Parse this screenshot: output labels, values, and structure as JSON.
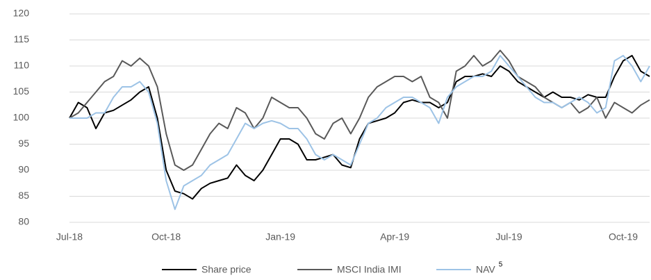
{
  "chart_data": {
    "type": "line",
    "categories": [
      "Jul-18",
      null,
      null,
      null,
      null,
      null,
      null,
      null,
      null,
      null,
      null,
      "Oct-18",
      null,
      null,
      null,
      null,
      null,
      null,
      null,
      null,
      null,
      null,
      null,
      null,
      "Jan-19",
      null,
      null,
      null,
      null,
      null,
      null,
      null,
      null,
      null,
      null,
      null,
      null,
      "Apr-19",
      null,
      null,
      null,
      null,
      null,
      null,
      null,
      null,
      null,
      null,
      null,
      null,
      "Jul-19",
      null,
      null,
      null,
      null,
      null,
      null,
      null,
      null,
      null,
      null,
      null,
      null,
      "Oct-19",
      null,
      null,
      null
    ],
    "series": [
      {
        "name": "Share price",
        "color": "#000000",
        "values": [
          100,
          103,
          102,
          98,
          101,
          101.5,
          102.5,
          103.5,
          105,
          106,
          100,
          90,
          86,
          85.5,
          84.5,
          86.5,
          87.5,
          88,
          88.5,
          91,
          89,
          88,
          90,
          93,
          96,
          96,
          95,
          92,
          92,
          92.5,
          93,
          91,
          90.5,
          96,
          99,
          99.5,
          100,
          101,
          103,
          103.5,
          103,
          103,
          102,
          103,
          107,
          108,
          108,
          108.5,
          108,
          110,
          109,
          107,
          106,
          105,
          104,
          105,
          104,
          104,
          103.5,
          104.5,
          104,
          104,
          108,
          111,
          112,
          109,
          108
        ]
      },
      {
        "name": "MSCI India IMI",
        "color": "#595959",
        "values": [
          100,
          101,
          103,
          105,
          107,
          108,
          111,
          110,
          111.5,
          110,
          106,
          97,
          91,
          90,
          91,
          94,
          97,
          99,
          98,
          102,
          101,
          98,
          100,
          104,
          103,
          102,
          102,
          100,
          97,
          96,
          99,
          100,
          97,
          100,
          104,
          106,
          107,
          108,
          108,
          107,
          108,
          104,
          103,
          100,
          109,
          110,
          112,
          110,
          111,
          113,
          111,
          108,
          107,
          106,
          104,
          103,
          102,
          103,
          101,
          102,
          104,
          100,
          103,
          102,
          101,
          102.5,
          103.5
        ]
      },
      {
        "name": "NAV",
        "footnote": "5",
        "color": "#9dc3e6",
        "values": [
          100,
          100,
          100,
          101,
          101,
          104,
          106,
          106,
          107,
          105,
          99,
          88,
          82.5,
          87,
          88,
          89,
          91,
          92,
          93,
          96,
          99,
          98,
          99,
          99.5,
          99,
          98,
          98,
          96,
          93,
          92,
          93,
          92,
          91,
          95,
          99,
          100,
          102,
          103,
          104,
          104,
          103,
          102,
          99,
          104,
          106,
          107,
          108,
          108,
          109,
          112,
          110,
          108,
          106,
          104,
          103,
          103,
          102,
          103,
          104,
          103,
          101,
          102,
          111,
          112,
          110,
          107,
          110
        ]
      }
    ],
    "ylim": [
      80,
      120
    ],
    "yticks": [
      80,
      85,
      90,
      95,
      100,
      105,
      110,
      115,
      120
    ],
    "grid": true,
    "legend": "bottom"
  }
}
